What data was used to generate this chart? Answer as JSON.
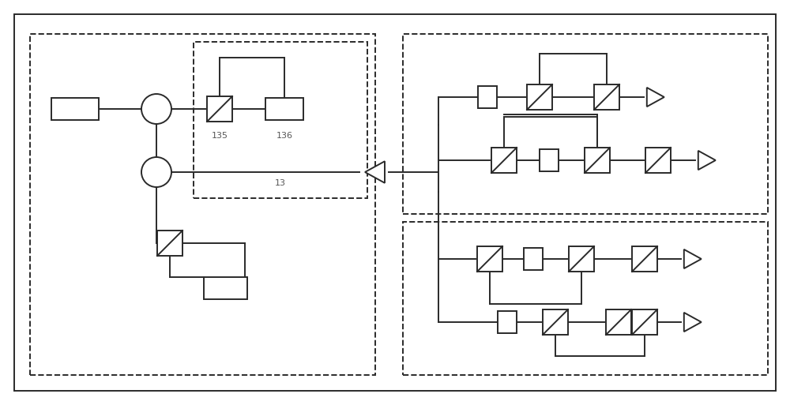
{
  "bg_color": "#ffffff",
  "line_color": "#2a2a2a",
  "fig_width": 10.0,
  "fig_height": 5.13,
  "lw": 1.4
}
